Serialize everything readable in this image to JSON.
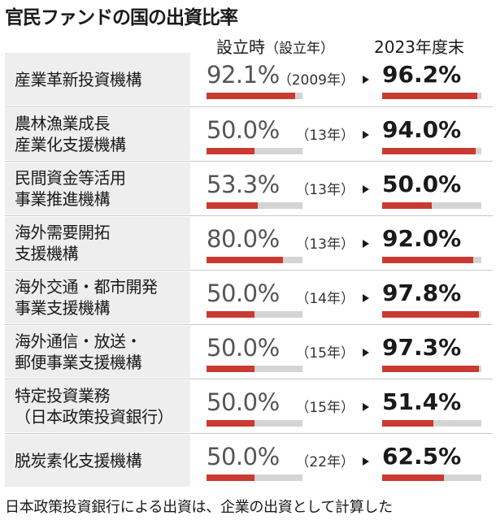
{
  "title": "官民ファンドの国の出資比率",
  "header": {
    "established": "設立時",
    "established_sub": "（設立年）",
    "end_2023": "2023年度末"
  },
  "chart_data": {
    "type": "bar",
    "title": "官民ファンドの国の出資比率",
    "unit": "%",
    "ylim": [
      0,
      100
    ],
    "series_names": [
      "設立時",
      "2023年度末"
    ],
    "rows": [
      {
        "name": "産業革新投資機構",
        "est_label": "92.1%",
        "est": 92.1,
        "year": "（2009年）",
        "end_label": "96.2%",
        "end": 96.2
      },
      {
        "name": "農林漁業成長\n産業化支援機構",
        "est_label": "50.0%",
        "est": 50.0,
        "year": "（13年）",
        "end_label": "94.0%",
        "end": 94.0
      },
      {
        "name": "民間資金等活用\n事業推進機構",
        "est_label": "53.3%",
        "est": 53.3,
        "year": "（13年）",
        "end_label": "50.0%",
        "end": 50.0
      },
      {
        "name": "海外需要開拓\n支援機構",
        "est_label": "80.0%",
        "est": 80.0,
        "year": "（13年）",
        "end_label": "92.0%",
        "end": 92.0
      },
      {
        "name": "海外交通・都市開発\n事業支援機構",
        "est_label": "50.0%",
        "est": 50.0,
        "year": "（14年）",
        "end_label": "97.8%",
        "end": 97.8
      },
      {
        "name": "海外通信・放送・\n郵便事業支援機構",
        "est_label": "50.0%",
        "est": 50.0,
        "year": "（15年）",
        "end_label": "97.3%",
        "end": 97.3
      },
      {
        "name": "特定投資業務\n（日本政策投資銀行）",
        "est_label": "50.0%",
        "est": 50.0,
        "year": "（15年）",
        "end_label": "51.4%",
        "end": 51.4
      },
      {
        "name": "脱炭素化支援機構",
        "est_label": "50.0%",
        "est": 50.0,
        "year": "（22年）",
        "end_label": "62.5%",
        "end": 62.5
      }
    ]
  },
  "footnote": "日本政策投資銀行による出資は、企業の出資として計算した",
  "colors": {
    "bar_fill": "#c93a32",
    "bar_track": "#d4d4d4",
    "name_bg": "#eeeeee"
  }
}
